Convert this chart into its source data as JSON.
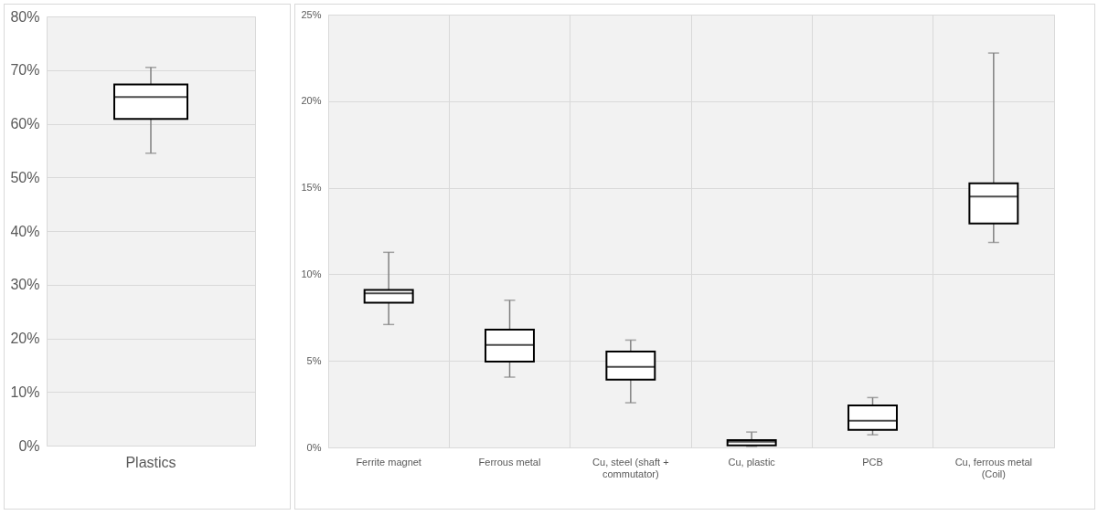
{
  "chart_data": [
    {
      "type": "box",
      "categories": [
        "Plastics"
      ],
      "ylim": [
        0,
        80
      ],
      "yticks": [
        {
          "value": 0,
          "label": "0%"
        },
        {
          "value": 10,
          "label": "10%"
        },
        {
          "value": 20,
          "label": "20%"
        },
        {
          "value": 30,
          "label": "30%"
        },
        {
          "value": 40,
          "label": "40%"
        },
        {
          "value": 50,
          "label": "50%"
        },
        {
          "value": 60,
          "label": "60%"
        },
        {
          "value": 70,
          "label": "70%"
        },
        {
          "value": 80,
          "label": "80%"
        }
      ],
      "grid": "y",
      "boxes": [
        {
          "low": 54.5,
          "q1": 60.9,
          "median": 65.0,
          "q3": 67.3,
          "high": 70.5
        }
      ]
    },
    {
      "type": "box",
      "categories": [
        "Ferrite magnet",
        "Ferrous metal",
        "Cu, steel (shaft + commutator)",
        "Cu, plastic",
        "PCB",
        "Cu, ferrous metal (Coil)"
      ],
      "ylim": [
        0,
        25
      ],
      "yticks": [
        {
          "value": 0,
          "label": "0%"
        },
        {
          "value": 5,
          "label": "5%"
        },
        {
          "value": 10,
          "label": "10%"
        },
        {
          "value": 15,
          "label": "15%"
        },
        {
          "value": 20,
          "label": "20%"
        },
        {
          "value": 25,
          "label": "25%"
        }
      ],
      "grid": true,
      "boxes": [
        {
          "low": 7.1,
          "q1": 8.36,
          "median": 8.9,
          "q3": 9.1,
          "high": 11.27
        },
        {
          "low": 4.06,
          "q1": 4.96,
          "median": 5.92,
          "q3": 6.8,
          "high": 8.5
        },
        {
          "low": 2.58,
          "q1": 3.92,
          "median": 4.66,
          "q3": 5.54,
          "high": 6.2
        },
        {
          "low": 0.06,
          "q1": 0.12,
          "median": 0.33,
          "q3": 0.42,
          "high": 0.89
        },
        {
          "low": 0.73,
          "q1": 1.01,
          "median": 1.54,
          "q3": 2.43,
          "high": 2.88
        },
        {
          "low": 11.84,
          "q1": 12.94,
          "median": 14.49,
          "q3": 15.25,
          "high": 22.78
        }
      ]
    }
  ]
}
